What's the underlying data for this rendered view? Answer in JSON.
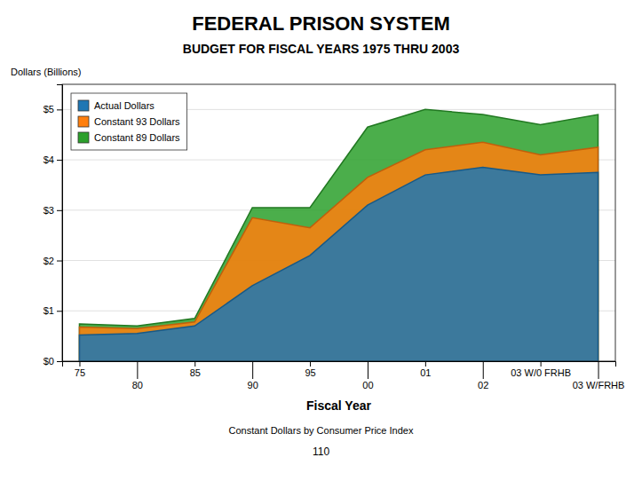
{
  "chart_data": {
    "type": "area",
    "title": "FEDERAL PRISON SYSTEM",
    "subtitle": "BUDGET FOR FISCAL YEARS 1975 THRU 2003",
    "xlabel": "Fiscal Year",
    "ylabel": "Dollars (Billions)",
    "annotations": [
      "Constant Dollars by Consumer Price Index",
      "110"
    ],
    "categories": [
      "75",
      "80",
      "85",
      "90",
      "95",
      "00",
      "01",
      "02",
      "03 W/0 FRHB",
      "03 W/FRHB"
    ],
    "series": [
      {
        "name": "Actual Dollars",
        "values": [
          0.52,
          0.55,
          0.7,
          1.5,
          2.1,
          3.1,
          3.7,
          3.85,
          3.7,
          3.75
        ]
      },
      {
        "name": "Constant 93 Dollars",
        "values": [
          0.68,
          0.65,
          0.78,
          2.85,
          2.65,
          3.65,
          4.2,
          4.35,
          4.1,
          4.25
        ]
      },
      {
        "name": "Constant 89 Dollars",
        "values": [
          0.74,
          0.7,
          0.85,
          3.05,
          3.05,
          4.65,
          5.0,
          4.9,
          4.7,
          4.9
        ]
      }
    ],
    "ylim": [
      0,
      5.5
    ],
    "yticks": [
      {
        "value": 0,
        "label": "$0"
      },
      {
        "value": 1,
        "label": "$1"
      },
      {
        "value": 2,
        "label": "$2"
      },
      {
        "value": 3,
        "label": "$3"
      },
      {
        "value": 4,
        "label": "$4"
      },
      {
        "value": 5,
        "label": "$5"
      }
    ],
    "grid": true,
    "legend": "upper left"
  }
}
